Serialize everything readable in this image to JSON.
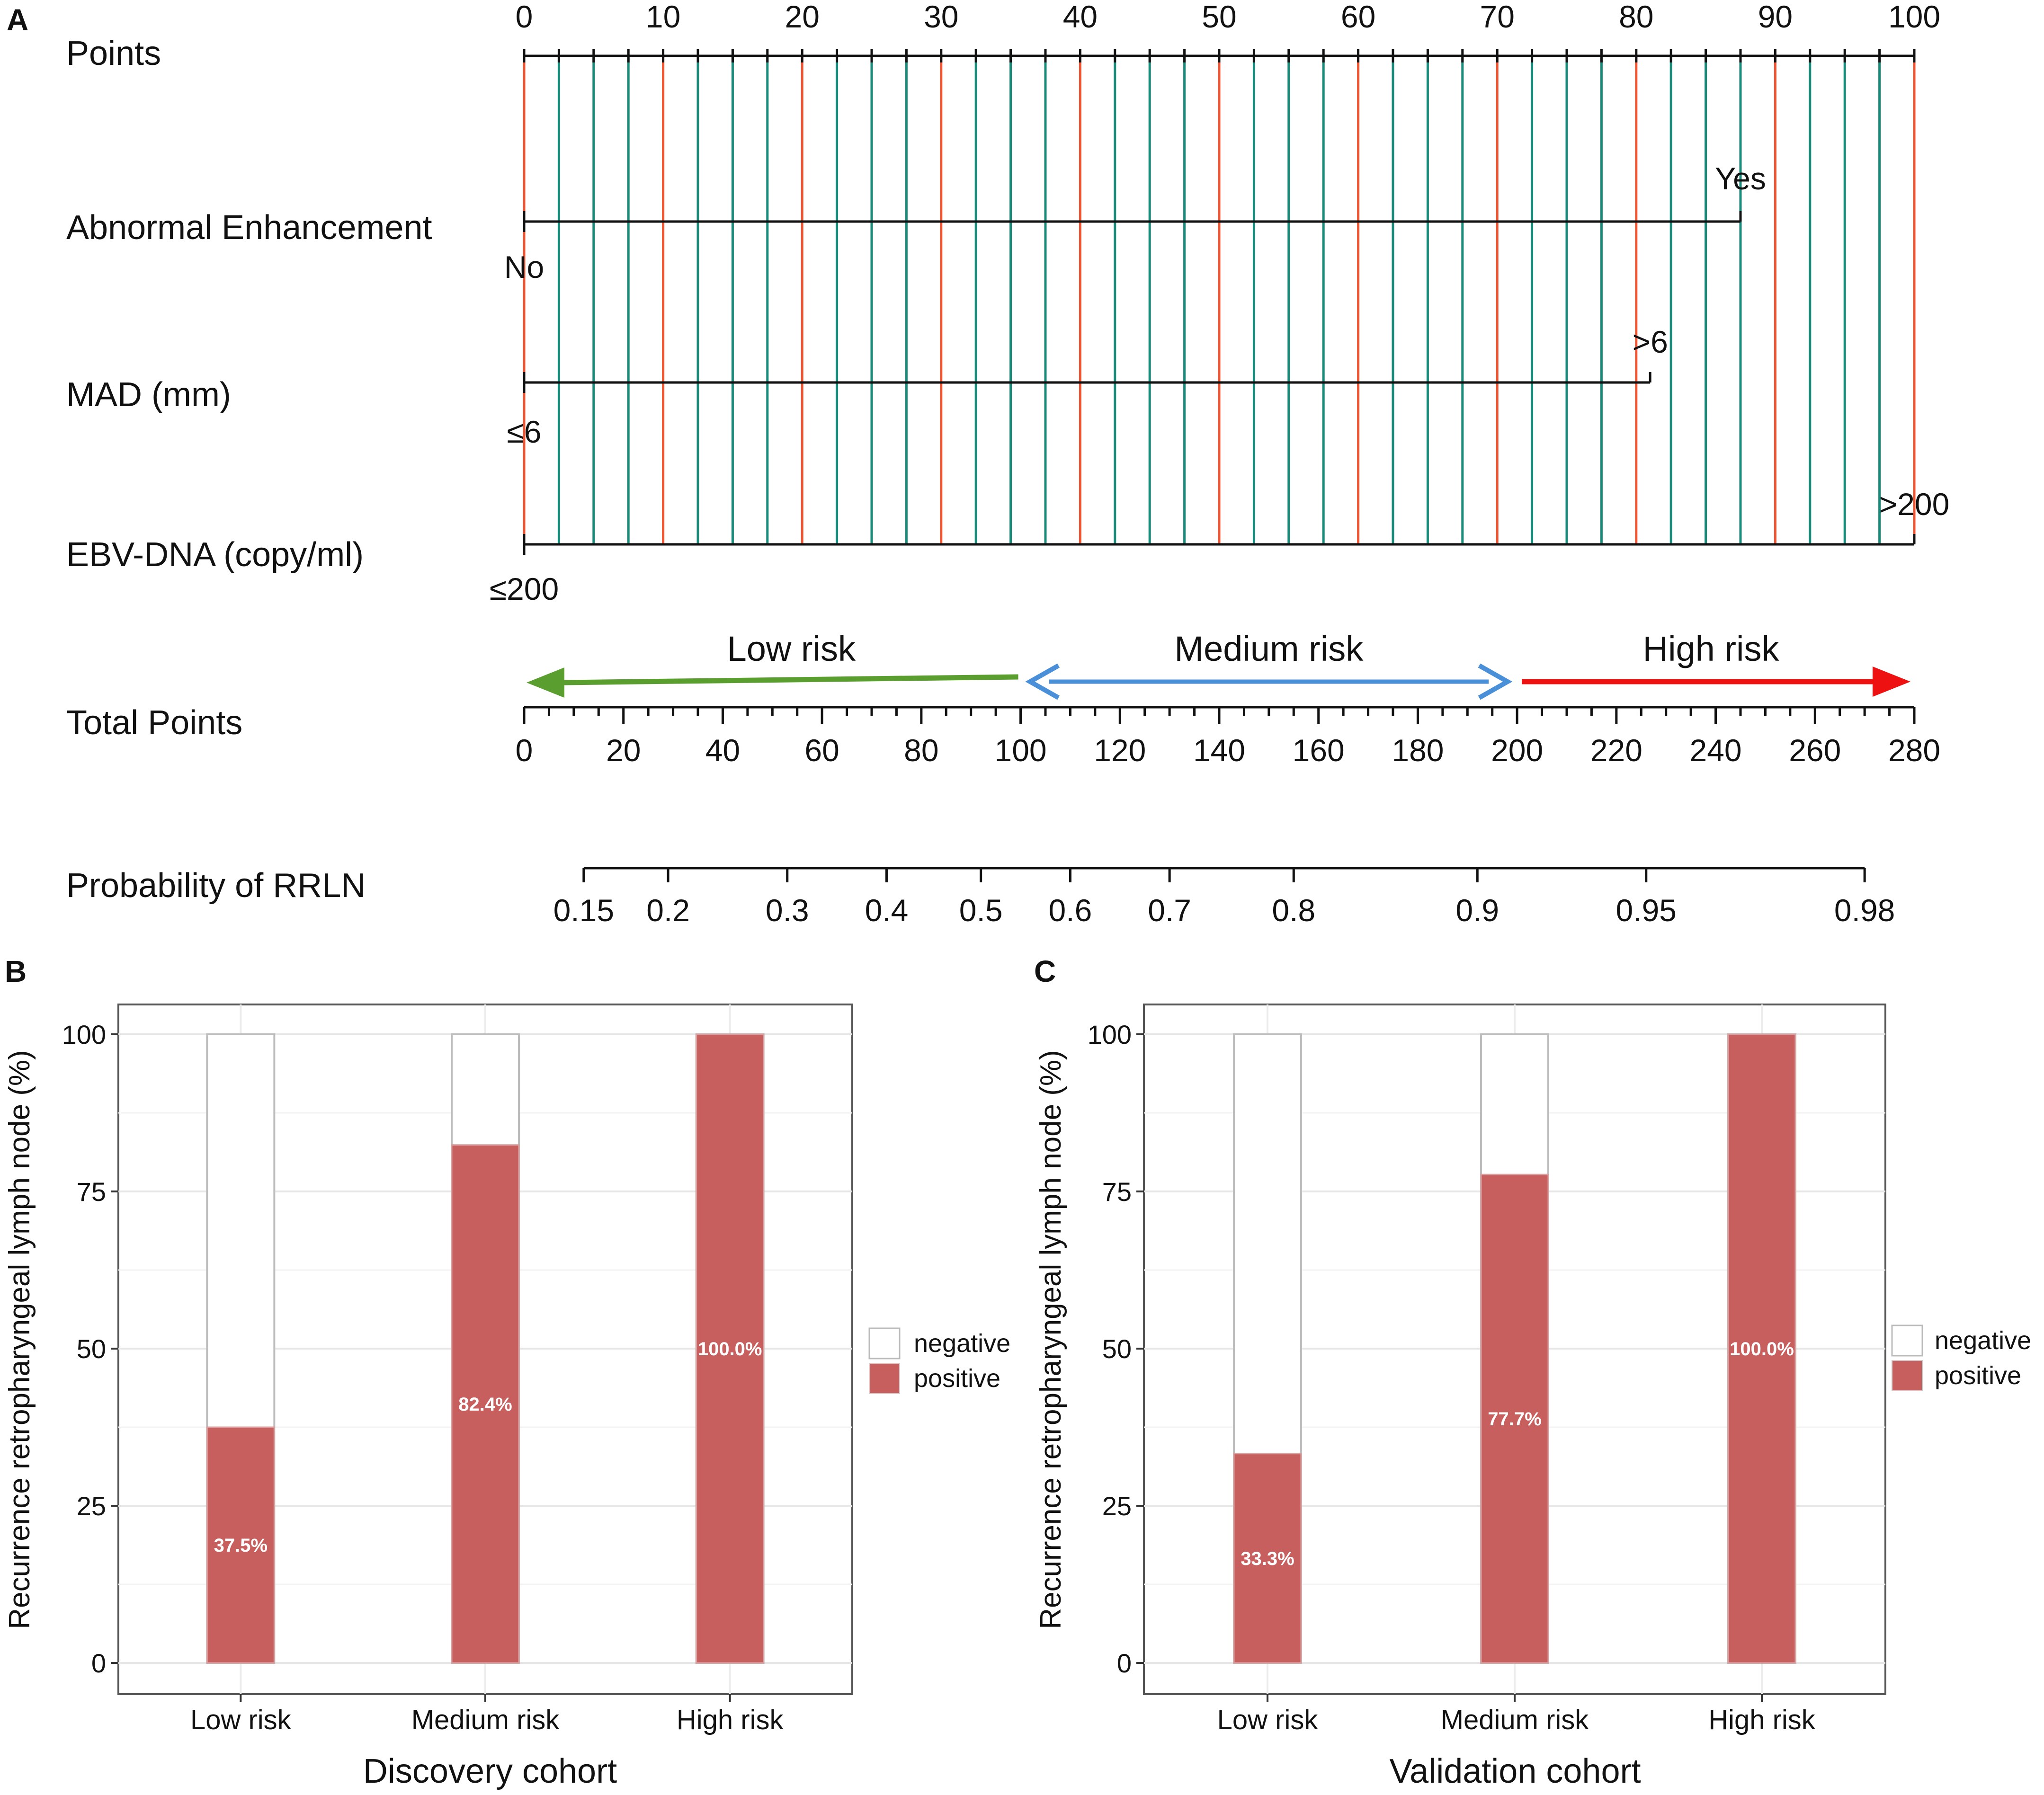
{
  "panels": {
    "a_label": "A",
    "b_label": "B",
    "c_label": "C"
  },
  "nomogram": {
    "points": {
      "label": "Points",
      "ticks": [
        "0",
        "10",
        "20",
        "30",
        "40",
        "50",
        "60",
        "70",
        "80",
        "90",
        "100"
      ],
      "min": 0,
      "max": 100
    },
    "variables": [
      {
        "label": "Abnormal Enhancement",
        "low_label": "No",
        "high_label": "Yes",
        "high_points": 87.5
      },
      {
        "label": "MAD (mm)",
        "low_label": "≤6",
        "high_label": ">6",
        "high_points": 81
      },
      {
        "label": "EBV-DNA (copy/ml)",
        "low_label": "≤200",
        "high_label": ">200",
        "high_points": 100
      }
    ],
    "risk_groups": [
      {
        "label": "Low risk",
        "from": 100,
        "to": 0,
        "color": "#5a9e2f"
      },
      {
        "label": "Medium risk",
        "from": 100,
        "to": 200,
        "color": "#4a90d9"
      },
      {
        "label": "High risk",
        "from": 200,
        "to": 280,
        "color": "#ee1111"
      }
    ],
    "total_points": {
      "label": "Total Points",
      "ticks": [
        "0",
        "20",
        "40",
        "60",
        "80",
        "100",
        "120",
        "140",
        "160",
        "180",
        "200",
        "220",
        "240",
        "260",
        "280"
      ],
      "min": 0,
      "max": 280
    },
    "probability": {
      "label": "Probability of RRLN",
      "ticks": [
        {
          "label": "0.15",
          "total_points": 12
        },
        {
          "label": "0.2",
          "total_points": 29
        },
        {
          "label": "0.3",
          "total_points": 53
        },
        {
          "label": "0.4",
          "total_points": 73
        },
        {
          "label": "0.5",
          "total_points": 92
        },
        {
          "label": "0.6",
          "total_points": 110
        },
        {
          "label": "0.7",
          "total_points": 130
        },
        {
          "label": "0.8",
          "total_points": 155
        },
        {
          "label": "0.9",
          "total_points": 192
        },
        {
          "label": "0.95",
          "total_points": 226
        },
        {
          "label": "0.98",
          "total_points": 270
        }
      ]
    },
    "colors": {
      "major_grid": "#ee5533",
      "minor_grid": "#1a8a7a",
      "axis": "#111111"
    }
  },
  "chart_data": [
    {
      "type": "bar",
      "title": "Discovery cohort",
      "xlabel": "Discovery cohort",
      "ylabel": "Recurrence retropharyngeal lymph node (%)",
      "categories": [
        "Low risk",
        "Medium risk",
        "High risk"
      ],
      "series": [
        {
          "name": "positive",
          "values": [
            37.5,
            82.4,
            100.0
          ]
        },
        {
          "name": "negative",
          "values": [
            62.5,
            17.6,
            0.0
          ]
        }
      ],
      "value_labels": [
        "37.5%",
        "82.4%",
        "100.0%"
      ],
      "stacked": true,
      "ylim": [
        0,
        100
      ],
      "yticks": [
        "0",
        "25",
        "50",
        "75",
        "100"
      ],
      "legend": [
        "negative",
        "positive"
      ],
      "legend_position": "right",
      "colors": {
        "positive": "#c85f5f",
        "negative": "#ffffff"
      }
    },
    {
      "type": "bar",
      "title": "Validation cohort",
      "xlabel": "Validation cohort",
      "ylabel": "Recurrence retropharyngeal lymph node (%)",
      "categories": [
        "Low risk",
        "Medium risk",
        "High risk"
      ],
      "series": [
        {
          "name": "positive",
          "values": [
            33.3,
            77.7,
            100.0
          ]
        },
        {
          "name": "negative",
          "values": [
            66.7,
            22.3,
            0.0
          ]
        }
      ],
      "value_labels": [
        "33.3%",
        "77.7%",
        "100.0%"
      ],
      "stacked": true,
      "ylim": [
        0,
        100
      ],
      "yticks": [
        "0",
        "25",
        "50",
        "75",
        "100"
      ],
      "legend": [
        "negative",
        "positive"
      ],
      "legend_position": "right",
      "colors": {
        "positive": "#c85f5f",
        "negative": "#ffffff"
      }
    }
  ]
}
